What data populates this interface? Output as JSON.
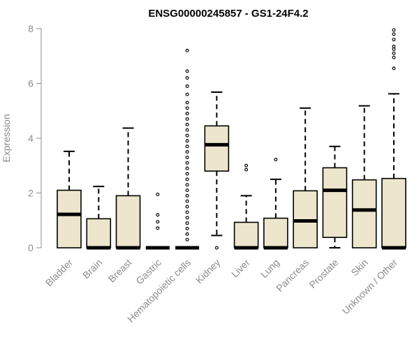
{
  "chart_data": {
    "type": "boxplot",
    "title": "ENSG00000245857 - GS1-24F4.2",
    "xlabel": "",
    "ylabel": "Expression",
    "ylim": [
      0,
      8
    ],
    "yticks": [
      0,
      2,
      4,
      6,
      8
    ],
    "grid": false,
    "box_color": "#ede6cc",
    "categories": [
      "Bladder",
      "Brain",
      "Breast",
      "Gastric",
      "Hematopoietic cells",
      "Kidney",
      "Liver",
      "Lung",
      "Pancreas",
      "Prostate",
      "Skin",
      "Unknown / Other"
    ],
    "boxes": [
      {
        "category": "Bladder",
        "whisker_low": 0,
        "q1": 0,
        "median": 1.22,
        "q3": 2.1,
        "whisker_high": 3.52,
        "outliers": []
      },
      {
        "category": "Brain",
        "whisker_low": 0,
        "q1": 0,
        "median": 0,
        "q3": 1.06,
        "whisker_high": 2.24,
        "outliers": []
      },
      {
        "category": "Breast",
        "whisker_low": 0,
        "q1": 0,
        "median": 0,
        "q3": 1.9,
        "whisker_high": 4.37,
        "outliers": []
      },
      {
        "category": "Gastric",
        "whisker_low": 0,
        "q1": 0,
        "median": 0,
        "q3": 0,
        "whisker_high": 0,
        "outliers": [
          0.72,
          0.95,
          1.2,
          1.95
        ]
      },
      {
        "category": "Hematopoietic cells",
        "whisker_low": 0,
        "q1": 0,
        "median": 0,
        "q3": 0,
        "whisker_high": 0,
        "outliers": [
          0.3,
          0.5,
          0.7,
          0.9,
          1.1,
          1.3,
          1.5,
          1.7,
          1.9,
          2.1,
          2.3,
          2.5,
          2.7,
          2.9,
          3.1,
          3.3,
          3.5,
          3.7,
          3.9,
          4.1,
          4.3,
          4.5,
          4.7,
          4.9,
          5.1,
          5.3,
          5.6,
          5.9,
          6.2,
          6.45,
          7.2
        ]
      },
      {
        "category": "Kidney",
        "whisker_low": 0.45,
        "q1": 2.8,
        "median": 3.76,
        "q3": 4.45,
        "whisker_high": 5.68,
        "outliers": [
          0
        ]
      },
      {
        "category": "Liver",
        "whisker_low": 0,
        "q1": 0,
        "median": 0,
        "q3": 0.93,
        "whisker_high": 1.9,
        "outliers": [
          2.85,
          3.0
        ]
      },
      {
        "category": "Lung",
        "whisker_low": 0,
        "q1": 0,
        "median": 0,
        "q3": 1.08,
        "whisker_high": 2.5,
        "outliers": [
          3.22
        ]
      },
      {
        "category": "Pancreas",
        "whisker_low": 0,
        "q1": 0,
        "median": 0.98,
        "q3": 2.08,
        "whisker_high": 5.1,
        "outliers": []
      },
      {
        "category": "Prostate",
        "whisker_low": 0,
        "q1": 0.38,
        "median": 2.1,
        "q3": 2.92,
        "whisker_high": 3.7,
        "outliers": []
      },
      {
        "category": "Skin",
        "whisker_low": 0,
        "q1": 0,
        "median": 1.38,
        "q3": 2.48,
        "whisker_high": 5.18,
        "outliers": []
      },
      {
        "category": "Unknown / Other",
        "whisker_low": 0,
        "q1": 0,
        "median": 0,
        "q3": 2.53,
        "whisker_high": 5.62,
        "outliers": [
          6.55,
          6.95,
          7.1,
          7.25,
          7.35,
          7.6,
          7.8,
          7.95
        ]
      }
    ]
  }
}
